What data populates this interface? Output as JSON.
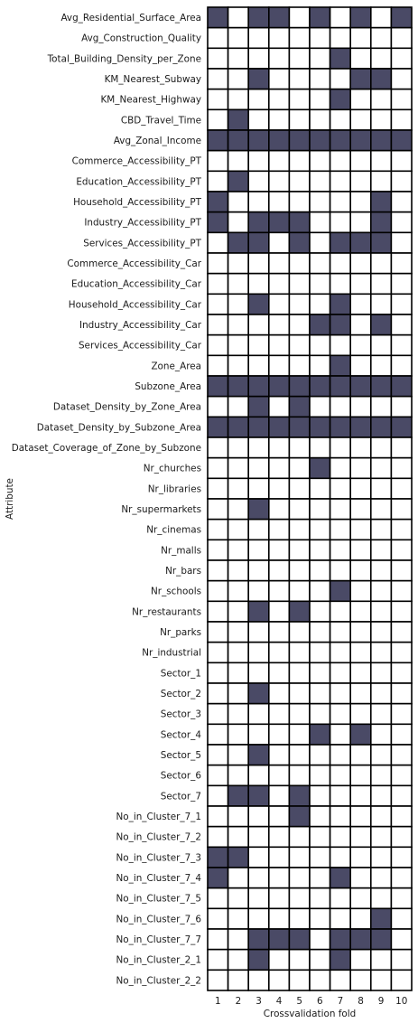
{
  "chart_data": {
    "type": "heatmap",
    "xlabel": "Crossvalidation fold",
    "ylabel": "Attribute",
    "x_categories": [
      "1",
      "2",
      "3",
      "4",
      "5",
      "6",
      "7",
      "8",
      "9",
      "10"
    ],
    "colors": {
      "selected": "#4a4a66",
      "not_selected": "#ffffff",
      "grid": "#000000"
    },
    "rows": [
      {
        "label": "Avg_Residential_Surface_Area",
        "values": [
          1,
          0,
          1,
          1,
          0,
          1,
          0,
          1,
          0,
          1
        ]
      },
      {
        "label": "Avg_Construction_Quality",
        "values": [
          0,
          0,
          0,
          0,
          0,
          0,
          0,
          0,
          0,
          0
        ]
      },
      {
        "label": "Total_Building_Density_per_Zone",
        "values": [
          0,
          0,
          0,
          0,
          0,
          0,
          1,
          0,
          0,
          0
        ]
      },
      {
        "label": "KM_Nearest_Subway",
        "values": [
          0,
          0,
          1,
          0,
          0,
          0,
          0,
          1,
          1,
          0
        ]
      },
      {
        "label": "KM_Nearest_Highway",
        "values": [
          0,
          0,
          0,
          0,
          0,
          0,
          1,
          0,
          0,
          0
        ]
      },
      {
        "label": "CBD_Travel_Time",
        "values": [
          0,
          1,
          0,
          0,
          0,
          0,
          0,
          0,
          0,
          0
        ]
      },
      {
        "label": "Avg_Zonal_Income",
        "values": [
          1,
          1,
          1,
          1,
          1,
          1,
          1,
          1,
          1,
          1
        ]
      },
      {
        "label": "Commerce_Accessibility_PT",
        "values": [
          0,
          0,
          0,
          0,
          0,
          0,
          0,
          0,
          0,
          0
        ]
      },
      {
        "label": "Education_Accessibility_PT",
        "values": [
          0,
          1,
          0,
          0,
          0,
          0,
          0,
          0,
          0,
          0
        ]
      },
      {
        "label": "Household_Accessibility_PT",
        "values": [
          1,
          0,
          0,
          0,
          0,
          0,
          0,
          0,
          1,
          0
        ]
      },
      {
        "label": "Industry_Accessibility_PT",
        "values": [
          1,
          0,
          1,
          1,
          1,
          0,
          0,
          0,
          1,
          0
        ]
      },
      {
        "label": "Services_Accessibility_PT",
        "values": [
          0,
          1,
          1,
          0,
          1,
          0,
          1,
          1,
          1,
          0
        ]
      },
      {
        "label": "Commerce_Accessibility_Car",
        "values": [
          0,
          0,
          0,
          0,
          0,
          0,
          0,
          0,
          0,
          0
        ]
      },
      {
        "label": "Education_Accessibility_Car",
        "values": [
          0,
          0,
          0,
          0,
          0,
          0,
          0,
          0,
          0,
          0
        ]
      },
      {
        "label": "Household_Accessibility_Car",
        "values": [
          0,
          0,
          1,
          0,
          0,
          0,
          1,
          0,
          0,
          0
        ]
      },
      {
        "label": "Industry_Accessibility_Car",
        "values": [
          0,
          0,
          0,
          0,
          0,
          1,
          1,
          0,
          1,
          0
        ]
      },
      {
        "label": "Services_Accessibility_Car",
        "values": [
          0,
          0,
          0,
          0,
          0,
          0,
          0,
          0,
          0,
          0
        ]
      },
      {
        "label": "Zone_Area",
        "values": [
          0,
          0,
          0,
          0,
          0,
          0,
          1,
          0,
          0,
          0
        ]
      },
      {
        "label": "Subzone_Area",
        "values": [
          1,
          1,
          1,
          1,
          1,
          1,
          1,
          1,
          1,
          1
        ]
      },
      {
        "label": "Dataset_Density_by_Zone_Area",
        "values": [
          0,
          0,
          1,
          0,
          1,
          0,
          0,
          0,
          0,
          0
        ]
      },
      {
        "label": "Dataset_Density_by_Subzone_Area",
        "values": [
          1,
          1,
          1,
          1,
          1,
          1,
          1,
          1,
          1,
          1
        ]
      },
      {
        "label": "Dataset_Coverage_of_Zone_by_Subzone",
        "values": [
          0,
          0,
          0,
          0,
          0,
          0,
          0,
          0,
          0,
          0
        ]
      },
      {
        "label": "Nr_churches",
        "values": [
          0,
          0,
          0,
          0,
          0,
          1,
          0,
          0,
          0,
          0
        ]
      },
      {
        "label": "Nr_libraries",
        "values": [
          0,
          0,
          0,
          0,
          0,
          0,
          0,
          0,
          0,
          0
        ]
      },
      {
        "label": "Nr_supermarkets",
        "values": [
          0,
          0,
          1,
          0,
          0,
          0,
          0,
          0,
          0,
          0
        ]
      },
      {
        "label": "Nr_cinemas",
        "values": [
          0,
          0,
          0,
          0,
          0,
          0,
          0,
          0,
          0,
          0
        ]
      },
      {
        "label": "Nr_malls",
        "values": [
          0,
          0,
          0,
          0,
          0,
          0,
          0,
          0,
          0,
          0
        ]
      },
      {
        "label": "Nr_bars",
        "values": [
          0,
          0,
          0,
          0,
          0,
          0,
          0,
          0,
          0,
          0
        ]
      },
      {
        "label": "Nr_schools",
        "values": [
          0,
          0,
          0,
          0,
          0,
          0,
          1,
          0,
          0,
          0
        ]
      },
      {
        "label": "Nr_restaurants",
        "values": [
          0,
          0,
          1,
          0,
          1,
          0,
          0,
          0,
          0,
          0
        ]
      },
      {
        "label": "Nr_parks",
        "values": [
          0,
          0,
          0,
          0,
          0,
          0,
          0,
          0,
          0,
          0
        ]
      },
      {
        "label": "Nr_industrial",
        "values": [
          0,
          0,
          0,
          0,
          0,
          0,
          0,
          0,
          0,
          0
        ]
      },
      {
        "label": "Sector_1",
        "values": [
          0,
          0,
          0,
          0,
          0,
          0,
          0,
          0,
          0,
          0
        ]
      },
      {
        "label": "Sector_2",
        "values": [
          0,
          0,
          1,
          0,
          0,
          0,
          0,
          0,
          0,
          0
        ]
      },
      {
        "label": "Sector_3",
        "values": [
          0,
          0,
          0,
          0,
          0,
          0,
          0,
          0,
          0,
          0
        ]
      },
      {
        "label": "Sector_4",
        "values": [
          0,
          0,
          0,
          0,
          0,
          1,
          0,
          1,
          0,
          0
        ]
      },
      {
        "label": "Sector_5",
        "values": [
          0,
          0,
          1,
          0,
          0,
          0,
          0,
          0,
          0,
          0
        ]
      },
      {
        "label": "Sector_6",
        "values": [
          0,
          0,
          0,
          0,
          0,
          0,
          0,
          0,
          0,
          0
        ]
      },
      {
        "label": "Sector_7",
        "values": [
          0,
          1,
          1,
          0,
          1,
          0,
          0,
          0,
          0,
          0
        ]
      },
      {
        "label": "No_in_Cluster_7_1",
        "values": [
          0,
          0,
          0,
          0,
          1,
          0,
          0,
          0,
          0,
          0
        ]
      },
      {
        "label": "No_in_Cluster_7_2",
        "values": [
          0,
          0,
          0,
          0,
          0,
          0,
          0,
          0,
          0,
          0
        ]
      },
      {
        "label": "No_in_Cluster_7_3",
        "values": [
          1,
          1,
          0,
          0,
          0,
          0,
          0,
          0,
          0,
          0
        ]
      },
      {
        "label": "No_in_Cluster_7_4",
        "values": [
          1,
          0,
          0,
          0,
          0,
          0,
          1,
          0,
          0,
          0
        ]
      },
      {
        "label": "No_in_Cluster_7_5",
        "values": [
          0,
          0,
          0,
          0,
          0,
          0,
          0,
          0,
          0,
          0
        ]
      },
      {
        "label": "No_in_Cluster_7_6",
        "values": [
          0,
          0,
          0,
          0,
          0,
          0,
          0,
          0,
          1,
          0
        ]
      },
      {
        "label": "No_in_Cluster_7_7",
        "values": [
          0,
          0,
          1,
          1,
          1,
          0,
          1,
          1,
          1,
          0
        ]
      },
      {
        "label": "No_in_Cluster_2_1",
        "values": [
          0,
          0,
          1,
          0,
          0,
          0,
          1,
          0,
          0,
          0
        ]
      },
      {
        "label": "No_in_Cluster_2_2",
        "values": [
          0,
          0,
          0,
          0,
          0,
          0,
          0,
          0,
          0,
          0
        ]
      }
    ]
  }
}
